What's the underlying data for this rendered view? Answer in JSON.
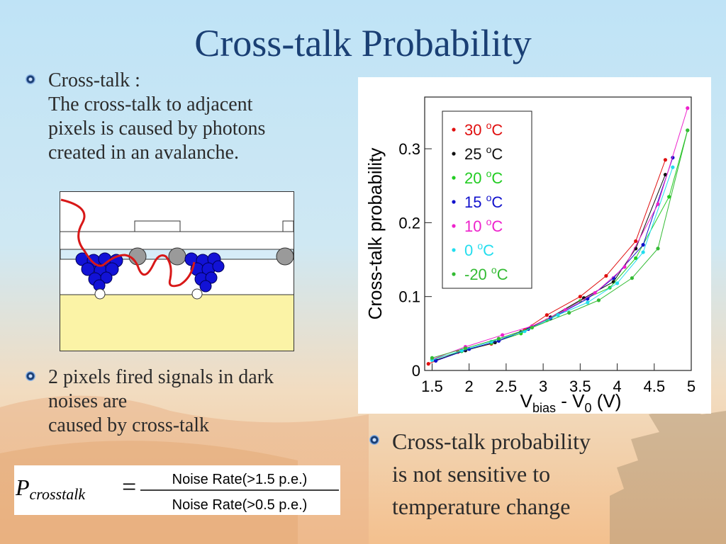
{
  "title": "Cross-talk Probability",
  "bullets": [
    {
      "lines": [
        "Cross-talk :",
        "The cross-talk to adjacent",
        "pixels is caused by photons",
        "created in an avalanche."
      ]
    },
    {
      "lines": [
        "2 pixels fired signals in dark",
        "noises are",
        "caused by cross-talk"
      ]
    },
    {
      "lines": [
        "Cross-talk probability",
        "is not sensitive to",
        "temperature change"
      ]
    }
  ],
  "formula": {
    "lhs_symbol": "P",
    "lhs_subscript": "crosstalk",
    "equals": "=",
    "numerator": "Noise Rate(>1.5 p.e.)",
    "denominator": "Noise Rate(>0.5 p.e.)"
  },
  "colors": {
    "title": "#1a3f74",
    "text": "#2b2b2b",
    "pixel_blue": "#1212d6",
    "photon_red": "#d81818",
    "substrate": "#fbf3a6"
  },
  "chart_data": {
    "type": "line",
    "title": "",
    "xlabel": "V_bias - V_0 (V)",
    "ylabel": "Cross-talk probability",
    "xlabel_parts": {
      "v1": "V",
      "sub1": "bias",
      "mid": " - V",
      "sub2": "0",
      "unit": " (V)"
    },
    "xlim": [
      1.4,
      5.0
    ],
    "ylim": [
      0,
      0.37
    ],
    "xticks": [
      "1.5",
      "2",
      "2.5",
      "3",
      "3.5",
      "4",
      "4.5",
      "5"
    ],
    "xtick_values": [
      1.5,
      2,
      2.5,
      3,
      3.5,
      4,
      4.5,
      5
    ],
    "yticks": [
      "0",
      "0.1",
      "0.2",
      "0.3"
    ],
    "ytick_values": [
      0,
      0.1,
      0.2,
      0.3
    ],
    "legend_position": "top-left",
    "grid": false,
    "series": [
      {
        "name": "30 °C",
        "legend": {
          "t": "30 ",
          "sup": "o",
          "u": "C"
        },
        "color": "#e01010",
        "x": [
          1.45,
          1.85,
          2.3,
          2.75,
          3.05,
          3.5,
          3.85,
          4.25,
          4.65
        ],
        "y": [
          0.009,
          0.025,
          0.036,
          0.055,
          0.075,
          0.1,
          0.128,
          0.175,
          0.285
        ]
      },
      {
        "name": "25 °C",
        "legend": {
          "t": "25 ",
          "sup": "o",
          "u": "C"
        },
        "color": "#111111",
        "x": [
          1.55,
          1.95,
          2.35,
          2.7,
          3.1,
          3.55,
          3.95,
          4.25,
          4.65
        ],
        "y": [
          0.014,
          0.027,
          0.038,
          0.052,
          0.072,
          0.098,
          0.12,
          0.165,
          0.265
        ]
      },
      {
        "name": "20 °C",
        "legend": {
          "t": "20 ",
          "sup": "o",
          "u": "C"
        },
        "color": "#22cc22",
        "x": [
          1.5,
          1.9,
          2.3,
          2.7,
          3.05,
          3.5,
          3.9,
          4.25,
          4.7,
          4.95
        ],
        "y": [
          0.015,
          0.026,
          0.037,
          0.05,
          0.068,
          0.094,
          0.112,
          0.152,
          0.235,
          0.325
        ]
      },
      {
        "name": "15 °C",
        "legend": {
          "t": "15 ",
          "sup": "o",
          "u": "C"
        },
        "color": "#1111cc",
        "x": [
          1.55,
          2.0,
          2.4,
          2.8,
          3.1,
          3.6,
          3.95,
          4.35,
          4.75
        ],
        "y": [
          0.013,
          0.029,
          0.04,
          0.056,
          0.07,
          0.097,
          0.125,
          0.17,
          0.288
        ]
      },
      {
        "name": "10 °C",
        "legend": {
          "t": "10 ",
          "sup": "o",
          "u": "C"
        },
        "color": "#ee22cc",
        "x": [
          1.5,
          1.95,
          2.45,
          2.85,
          3.3,
          3.7,
          4.1,
          4.55,
          4.95
        ],
        "y": [
          0.015,
          0.032,
          0.048,
          0.06,
          0.082,
          0.105,
          0.14,
          0.225,
          0.355
        ]
      },
      {
        "name": "0 °C",
        "legend": {
          "t": "  0 ",
          "sup": "o",
          "u": "C"
        },
        "color": "#22ddee",
        "x": [
          1.5,
          1.9,
          2.3,
          2.75,
          3.2,
          3.6,
          4.0,
          4.35,
          4.75
        ],
        "y": [
          0.014,
          0.027,
          0.039,
          0.053,
          0.075,
          0.092,
          0.118,
          0.16,
          0.275
        ]
      },
      {
        "name": "-20 °C",
        "legend": {
          "t": "-20 ",
          "sup": "o",
          "u": "C"
        },
        "color": "#33bb33",
        "x": [
          1.5,
          1.95,
          2.4,
          2.85,
          3.35,
          3.75,
          4.2,
          4.55,
          4.95
        ],
        "y": [
          0.017,
          0.03,
          0.043,
          0.058,
          0.078,
          0.095,
          0.125,
          0.165,
          0.325
        ]
      }
    ]
  }
}
